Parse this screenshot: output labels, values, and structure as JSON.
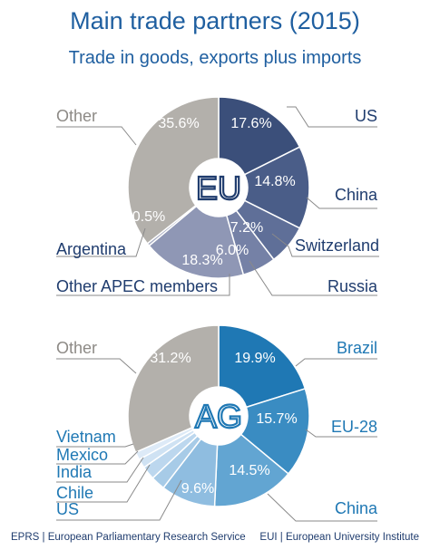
{
  "header": {
    "title": "Main trade partners (2015)",
    "subtitle": "Trade in goods, exports plus imports"
  },
  "footer": {
    "left": "EPRS | European Parliamentary Research Service",
    "right": "EUI | European University Institute"
  },
  "colors": {
    "title": "#1f5fa0",
    "eu_text": "#1f3c6e",
    "ag_text": "#1f78b4",
    "leader": "#8a8a8a"
  },
  "chart_data": [
    {
      "type": "pie",
      "center_label": "EU",
      "slices": [
        {
          "name": "US",
          "value": 17.6,
          "value_label": "17.6%",
          "color": "#3b4f7a"
        },
        {
          "name": "China",
          "value": 14.8,
          "value_label": "14.8%",
          "color": "#4a5d88"
        },
        {
          "name": "Switzerland",
          "value": 7.2,
          "value_label": "7.2%",
          "color": "#5f6f98"
        },
        {
          "name": "Russia",
          "value": 6.0,
          "value_label": "6.0%",
          "color": "#7581a6"
        },
        {
          "name": "Other APEC members",
          "value": 18.3,
          "value_label": "18.3%",
          "color": "#8f97b5"
        },
        {
          "name": "Argentina",
          "value": 0.5,
          "value_label": "0.5%",
          "color": "#a7acc2"
        },
        {
          "name": "Other",
          "value": 35.6,
          "value_label": "35.6%",
          "color": "#b3b0ab"
        }
      ]
    },
    {
      "type": "pie",
      "center_label": "AG",
      "slices": [
        {
          "name": "Brazil",
          "value": 19.9,
          "value_label": "19.9%",
          "color": "#1f78b4"
        },
        {
          "name": "EU-28",
          "value": 15.7,
          "value_label": "15.7%",
          "color": "#3a8cc2"
        },
        {
          "name": "China",
          "value": 14.5,
          "value_label": "14.5%",
          "color": "#62a5d2"
        },
        {
          "name": "US",
          "value": 9.6,
          "value_label": "9.6%",
          "color": "#8fbde0"
        },
        {
          "name": "Chile",
          "value": 2.5,
          "color": "#a7cbe7"
        },
        {
          "name": "India",
          "value": 2.4,
          "color": "#bcd7ee"
        },
        {
          "name": "Mexico",
          "value": 1.6,
          "color": "#cfe2f3"
        },
        {
          "name": "Vietnam",
          "value": 1.4,
          "color": "#ddeaf7"
        },
        {
          "name": "Other",
          "value": 31.2,
          "value_label": "31.2%",
          "color": "#b3b0ab"
        }
      ]
    }
  ]
}
